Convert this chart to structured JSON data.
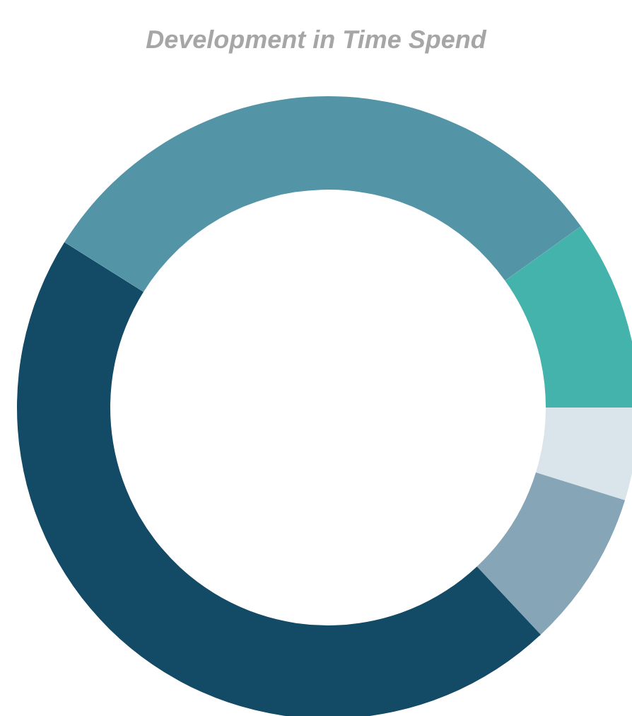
{
  "chart_data": {
    "type": "donut",
    "title": "Development in Time Spend",
    "categories": [
      null,
      null,
      null,
      null,
      null
    ],
    "values": [
      9.9,
      4.8,
      8.2,
      45.9,
      31.2
    ],
    "colors": [
      "#43b3ab",
      "#d9e5ea",
      "#86a6b7",
      "#134a66",
      "#5395a6"
    ]
  }
}
